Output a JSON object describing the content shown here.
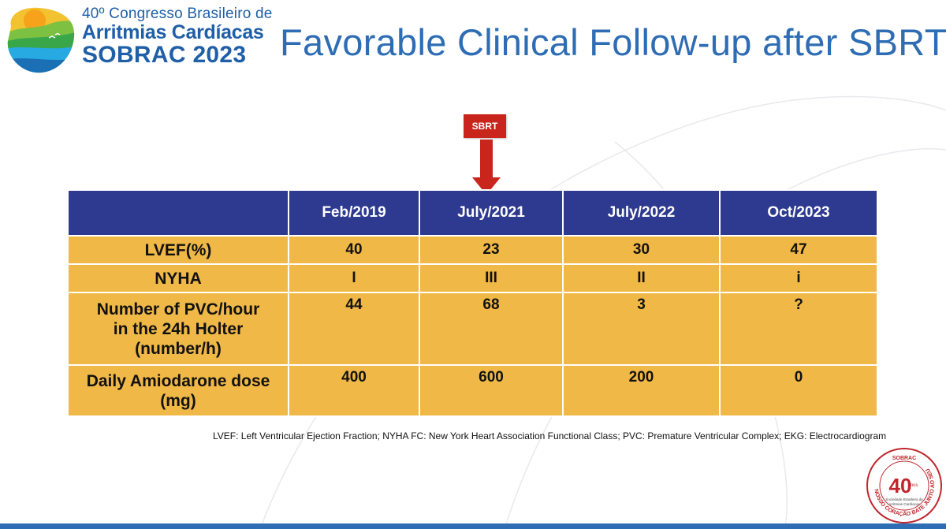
{
  "logo": {
    "line1": "40º Congresso Brasileiro de",
    "line2": "Arritmias Cardíacas",
    "line3": "SOBRAC 2023"
  },
  "title": "Favorable Clinical Follow-up after SBRT",
  "sbrt_marker": {
    "label": "SBRT",
    "color": "#c9251d"
  },
  "table": {
    "corner": "",
    "columns": [
      "Feb/2019",
      "July/2021",
      "July/2022",
      "Oct/2023"
    ],
    "rows": [
      {
        "label": "LVEF(%)",
        "values": [
          "40",
          "23",
          "30",
          "47"
        ]
      },
      {
        "label": "NYHA",
        "values": [
          "I",
          "III",
          "II",
          "i"
        ]
      },
      {
        "label_lines": [
          "Number of PVC/hour",
          "in the 24h Holter",
          "(number/h)"
        ],
        "values": [
          "44",
          "68",
          "3",
          "?"
        ]
      },
      {
        "label_lines": [
          "Daily Amiodarone dose",
          "(mg)"
        ],
        "values": [
          "400",
          "600",
          "200",
          "0"
        ]
      }
    ],
    "header_color": "#2e3a8f",
    "cell_color": "#f0b846"
  },
  "footnote": "LVEF: Left Ventricular Ejection Fraction; NYHA FC: New York Heart Association Functional Class; PVC: Premature Ventricular Complex; EKG: Electrocardiogram",
  "seal": {
    "top_text": "SOBRAC",
    "number": "40",
    "sub": "anos",
    "org_line1": "Sociedade Brasileira de",
    "org_line2": "Arritmias Cardíacas",
    "ring_text": "NOSSO CORAÇÃO BATE JUNTO AO SEU"
  },
  "colors": {
    "title_blue": "#2e6db4",
    "brand_blue": "#1f5fa8"
  }
}
